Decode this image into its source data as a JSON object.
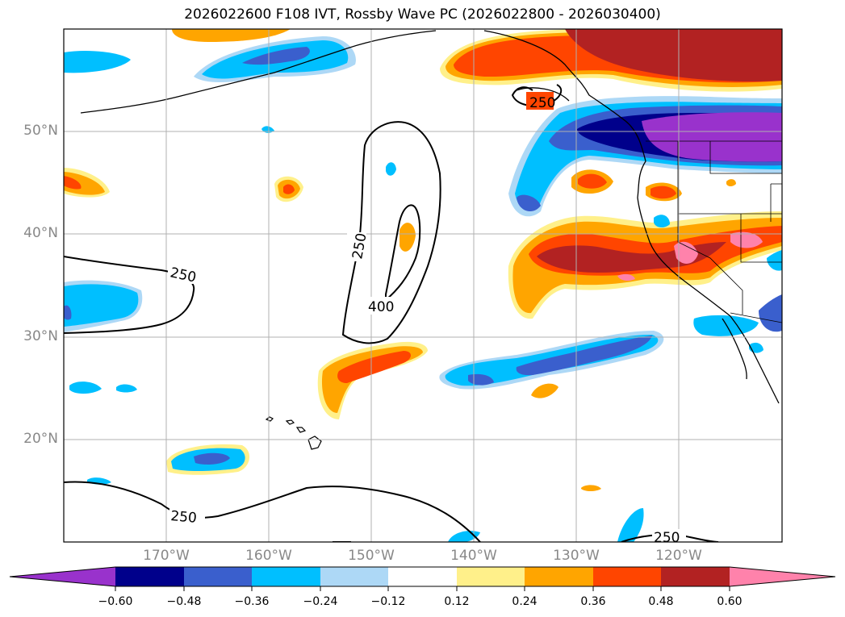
{
  "title": "2026022600 F108 IVT, Rossby Wave PC (2026022800 - 2026030400)",
  "lat_labels": [
    "50°N",
    "40°N",
    "30°N",
    "20°N"
  ],
  "lon_labels": [
    "170°W",
    "160°W",
    "150°W",
    "140°W",
    "130°W",
    "120°W"
  ],
  "contour_labels": {
    "alaska": "250",
    "oval_outer": "250",
    "oval_inner": "400",
    "west": "250",
    "south": "250",
    "southeast": "250"
  },
  "colorbar": {
    "labels": [
      "−0.60",
      "−0.48",
      "−0.36",
      "−0.24",
      "−0.12",
      "0.12",
      "0.24",
      "0.36",
      "0.48",
      "0.60"
    ],
    "colors": [
      "#9932cc",
      "#00008b",
      "#3a5fcd",
      "#00bfff",
      "#add8f6",
      "#ffffff",
      "#fff08a",
      "#ffa500",
      "#ff4500",
      "#b22222",
      "#ff82ab"
    ]
  },
  "colors": {
    "pos_low": "#fff08a",
    "pos_mid": "#ffa500",
    "pos_high": "#ff4500",
    "pos_higher": "#b22222",
    "pos_max": "#ff82ab",
    "neg_low": "#add8f6",
    "neg_mid": "#00bfff",
    "neg_high": "#3a5fcd",
    "neg_higher": "#00008b",
    "neg_max": "#9932cc"
  }
}
